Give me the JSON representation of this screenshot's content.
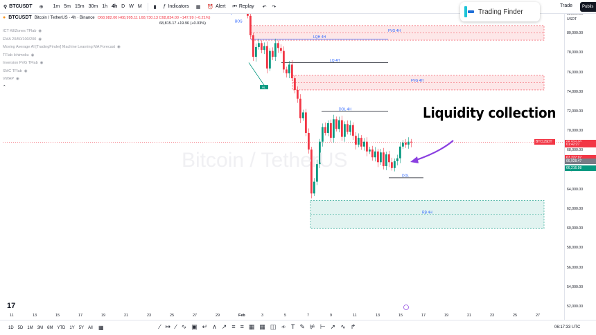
{
  "toolbar": {
    "symbol": "BTCUSDT",
    "timeframes": [
      "1m",
      "5m",
      "15m",
      "30m",
      "1h",
      "4h",
      "D",
      "W",
      "M"
    ],
    "active_timeframe": "4h",
    "indicators_label": "Indicators",
    "alert_label": "Alert",
    "replay_label": "Replay",
    "trade_label": "Trade",
    "publish_label": "Publis"
  },
  "logo": {
    "text": "Trading Finder"
  },
  "legend": {
    "title": "Bitcoin / TetherUS · 4h · Binance",
    "ohlc": "O68,982.00 H68,995.11 L68,730.13 C68,834.00 −147.99 (−0.21%)",
    "prices": "68,815.17  +19.96 (+0.03%)",
    "indicators": [
      "ICT KillZones TFlab",
      "EMA 20/50/100/200",
      "Moving Average AI [TradingFinder] Machine Learning MA Forecast",
      "TFlab Ichimoku",
      "Inversion FVG TFlab",
      "SMC TFlab",
      "VWAP"
    ]
  },
  "price_axis": {
    "currency": "USDT",
    "labels": [
      "82,000.00",
      "80,000.00",
      "78,000.00",
      "76,000.00",
      "74,000.00",
      "72,000.00",
      "70,000.00",
      "68,000.00",
      "66,000.00",
      "64,000.00",
      "62,000.00",
      "60,000.00",
      "58,000.00",
      "56,000.00",
      "54,000.00",
      "52,000.00"
    ],
    "tags": {
      "symbol": "BTCUSDT",
      "last": "68,834.00",
      "countdown": "01:42:27",
      "red": "67,227.97",
      "grey": "66,928.47",
      "green": "66,216.98"
    }
  },
  "x_axis": {
    "labels": [
      "11",
      "13",
      "15",
      "17",
      "19",
      "21",
      "23",
      "25",
      "27",
      "29",
      "Feb",
      "3",
      "5",
      "7",
      "9",
      "11",
      "13",
      "15",
      "17",
      "19",
      "21",
      "23",
      "25",
      "27"
    ]
  },
  "annotations": {
    "bos": "BOS",
    "fvg": "FVG 4H",
    "lqh": "LQH 4H",
    "lq": "LQ 4H",
    "dol4h": "DOL 4H",
    "dol": "DOL",
    "rb": "RB 4H",
    "hl": "HL",
    "liquidity_text": "Liquidity collection"
  },
  "watermark": "Bitcoin / TetherUS",
  "bottom": {
    "ranges": [
      "1D",
      "5D",
      "1M",
      "3M",
      "6M",
      "YTD",
      "1Y",
      "5Y",
      "All"
    ],
    "clock": "06:17:33 UTC"
  },
  "colors": {
    "up": "#089981",
    "down": "#f23645",
    "fvg": "#f23645",
    "rb": "#089981",
    "arrow": "#8a3fe0"
  }
}
